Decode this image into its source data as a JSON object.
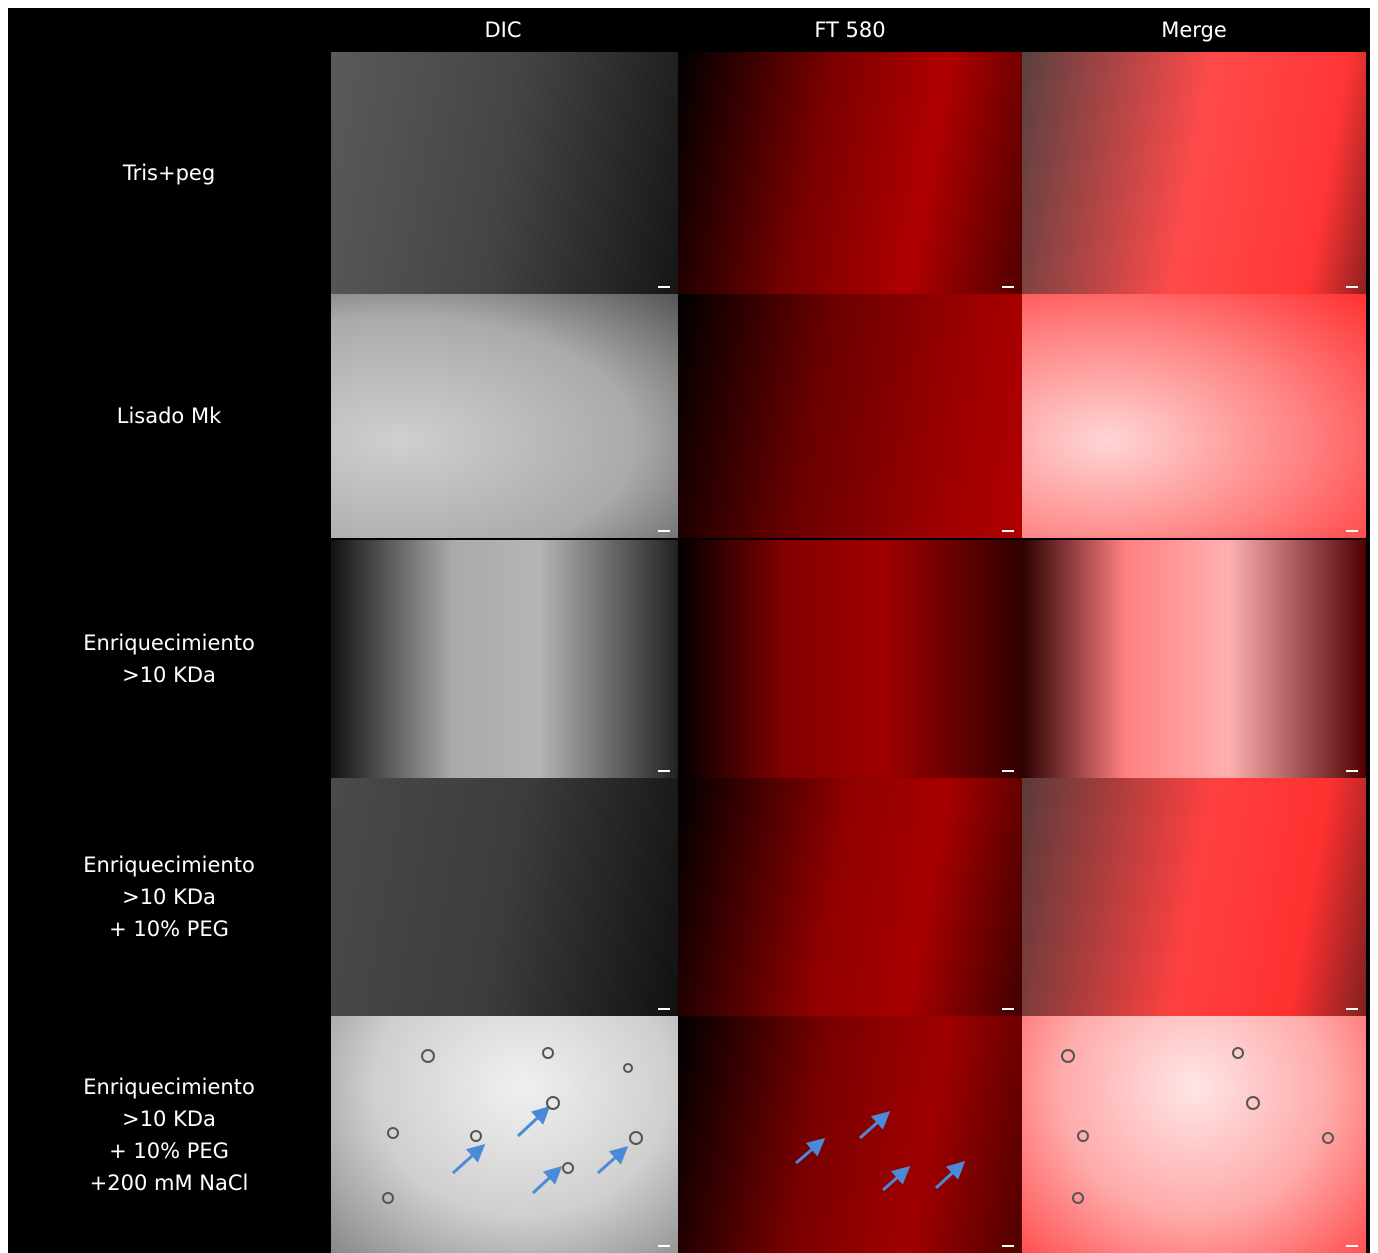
{
  "columns": [
    "DIC",
    "FT 580",
    "Merge"
  ],
  "rows": [
    {
      "label": [
        "Tris+peg"
      ]
    },
    {
      "label": [
        "Lisado Mk"
      ]
    },
    {
      "label": [
        "Enriquecimiento",
        ">10 KDa"
      ]
    },
    {
      "label": [
        "Enriquecimiento",
        ">10 KDa",
        "+ 10% PEG"
      ]
    },
    {
      "label": [
        "Enriquecimiento",
        ">10 KDa",
        "+ 10% PEG",
        "+200 mM NaCl"
      ]
    }
  ]
}
